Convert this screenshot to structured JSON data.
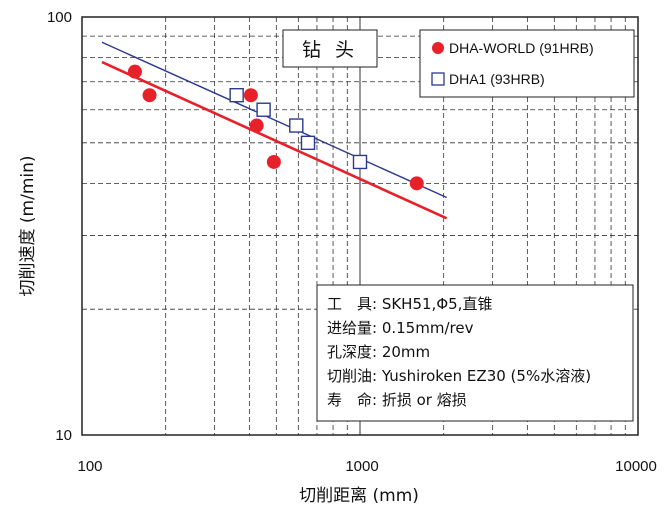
{
  "chart_data": {
    "type": "scatter",
    "title": "钻 头",
    "xlabel": "切削距离 (mm)",
    "ylabel": "切削速度 (m/min)",
    "x_scale": "log",
    "y_scale": "log",
    "xlim": [
      100,
      10000
    ],
    "ylim": [
      10,
      100
    ],
    "x_tick_labels": [
      "100",
      "1000",
      "10000"
    ],
    "y_tick_labels": [
      "10",
      "100"
    ],
    "grid": true,
    "legend_position": "top-right",
    "series": [
      {
        "name": "DHA-WORLD (91HRB)",
        "marker": "filled-circle",
        "color": "#e8202a",
        "points": [
          {
            "x": 155,
            "y": 74
          },
          {
            "x": 175,
            "y": 65
          },
          {
            "x": 405,
            "y": 65
          },
          {
            "x": 425,
            "y": 55
          },
          {
            "x": 490,
            "y": 45
          },
          {
            "x": 1600,
            "y": 40
          }
        ],
        "trend": [
          {
            "x": 118,
            "y": 78
          },
          {
            "x": 2050,
            "y": 33
          }
        ]
      },
      {
        "name": "DHA1 (93HRB)",
        "marker": "open-square",
        "color": "#2b3a8f",
        "points": [
          {
            "x": 360,
            "y": 65
          },
          {
            "x": 450,
            "y": 60
          },
          {
            "x": 590,
            "y": 55
          },
          {
            "x": 650,
            "y": 50
          },
          {
            "x": 1000,
            "y": 45
          }
        ],
        "trend": [
          {
            "x": 118,
            "y": 87
          },
          {
            "x": 2050,
            "y": 37
          }
        ]
      }
    ],
    "conditions": [
      {
        "label": "工　具: ",
        "value": "SKH51,Φ5,直锥"
      },
      {
        "label": "进给量: ",
        "value": "0.15mm/rev"
      },
      {
        "label": "孔深度: ",
        "value": "20mm"
      },
      {
        "label": "切削油: ",
        "value": "Yushiroken EZ30 (5%水溶液)"
      },
      {
        "label": "寿　命: ",
        "value": "折损 or 熔损"
      }
    ]
  }
}
